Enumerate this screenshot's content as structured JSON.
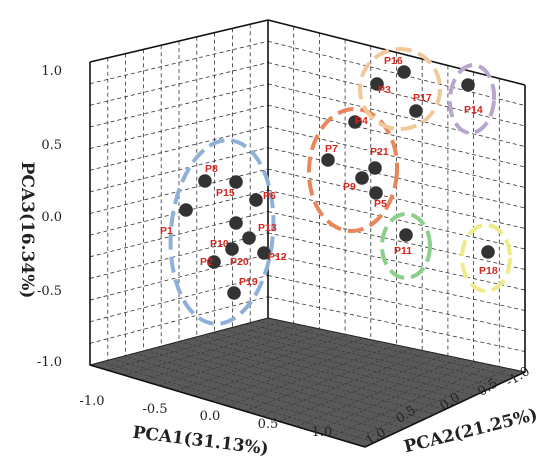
{
  "chart_data": {
    "type": "scatter",
    "projection": "3d",
    "axes": {
      "x": {
        "label": "PCA1(31.13%)",
        "ticks": [
          "-1.0",
          "-0.5",
          "0.0",
          "0.5",
          "1.0"
        ]
      },
      "y": {
        "label": "PCA2(21.25%)",
        "ticks": [
          "1.0",
          "0.5",
          "0.0",
          "-0.5",
          "-1.0"
        ]
      },
      "z": {
        "label": "PCA3(16.34%)",
        "ticks": [
          "1.0",
          "0.5",
          "0.0",
          "-0.5",
          "-1.0"
        ]
      }
    },
    "grid": true,
    "points": [
      {
        "name": "P1",
        "pca3": 0.05
      },
      {
        "name": "P2",
        "pca3": -0.25
      },
      {
        "name": "P3",
        "pca3": 0.9
      },
      {
        "name": "P4",
        "pca3": 0.65
      },
      {
        "name": "P5",
        "pca3": 0.15
      },
      {
        "name": "P6",
        "pca3": 0.1
      },
      {
        "name": "P7",
        "pca3": 0.4
      },
      {
        "name": "P8",
        "pca3": 0.25
      },
      {
        "name": "P9",
        "pca3": 0.25
      },
      {
        "name": "P10",
        "pca3": -0.05
      },
      {
        "name": "P11",
        "pca3": -0.15
      },
      {
        "name": "P12",
        "pca3": -0.25
      },
      {
        "name": "P13",
        "pca3": -0.15
      },
      {
        "name": "P14",
        "pca3": 0.9
      },
      {
        "name": "P15",
        "pca3": 0.2
      },
      {
        "name": "P16",
        "pca3": 1.0
      },
      {
        "name": "P17",
        "pca3": 0.7
      },
      {
        "name": "P18",
        "pca3": -0.25
      },
      {
        "name": "P19",
        "pca3": -0.55
      },
      {
        "name": "P20",
        "pca3": -0.25
      },
      {
        "name": "P21",
        "pca3": 0.3
      }
    ],
    "clusters": [
      {
        "members": [
          "P1",
          "P2",
          "P6",
          "P8",
          "P10",
          "P12",
          "P13",
          "P15",
          "P19",
          "P20"
        ],
        "color": "#8fb0d9"
      },
      {
        "members": [
          "P4",
          "P5",
          "P7",
          "P9",
          "P21"
        ],
        "color": "#e8865c"
      },
      {
        "members": [
          "P3",
          "P16",
          "P17"
        ],
        "color": "#f0c89a"
      },
      {
        "members": [
          "P14"
        ],
        "color": "#b8a6cf"
      },
      {
        "members": [
          "P11"
        ],
        "color": "#8ccf8c"
      },
      {
        "members": [
          "P18"
        ],
        "color": "#eeeb8a"
      }
    ],
    "colors": {
      "points": "#333333",
      "labels": "#d8261b",
      "floor": "#595959"
    }
  }
}
